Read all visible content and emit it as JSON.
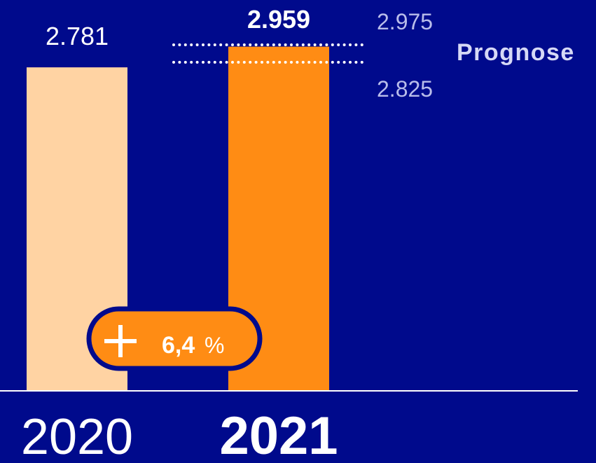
{
  "chart_data": {
    "type": "bar",
    "categories": [
      "2020",
      "2021"
    ],
    "values": [
      2781,
      2959
    ],
    "value_labels": [
      "2.781",
      "2.959"
    ],
    "colors": [
      "#ffd3a3",
      "#ff8c14"
    ],
    "highlight_index": 1,
    "ylim": [
      0,
      3360
    ],
    "forecast": {
      "label": "Prognose",
      "low": {
        "value": 2825,
        "label": "2.825"
      },
      "high": {
        "value": 2975,
        "label": "2.975"
      }
    },
    "change": {
      "value": 6.4,
      "label": "6,4",
      "unit": "%"
    }
  }
}
